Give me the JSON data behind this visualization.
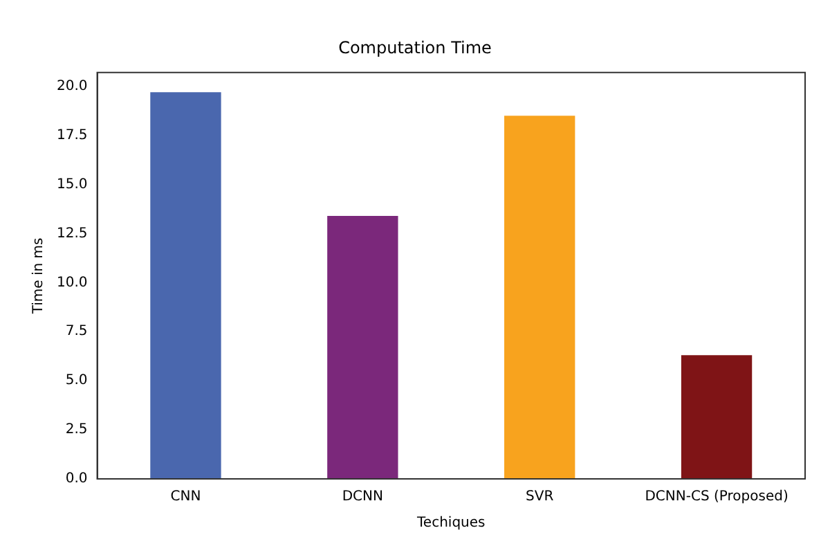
{
  "chart_data": {
    "type": "bar",
    "title": "Computation Time",
    "xlabel": "Techiques",
    "ylabel": "Time in ms",
    "categories": [
      "CNN",
      "DCNN",
      "SVR",
      "DCNN-CS (Proposed)"
    ],
    "values": [
      19.7,
      13.4,
      18.5,
      6.3
    ],
    "colors": [
      "#4a67ae",
      "#7b287b",
      "#f8a31e",
      "#7f1416"
    ],
    "ylim": [
      0,
      20.7
    ],
    "yticks": [
      {
        "value": 0,
        "label": "0.0"
      },
      {
        "value": 2.5,
        "label": "2.5"
      },
      {
        "value": 5,
        "label": "5.0"
      },
      {
        "value": 7.5,
        "label": "7.5"
      },
      {
        "value": 10,
        "label": "10.0"
      },
      {
        "value": 12.5,
        "label": "12.5"
      },
      {
        "value": 15,
        "label": "15.0"
      },
      {
        "value": 17.5,
        "label": "17.5"
      },
      {
        "value": 20,
        "label": "20.0"
      }
    ],
    "grid": false,
    "legend": false
  }
}
